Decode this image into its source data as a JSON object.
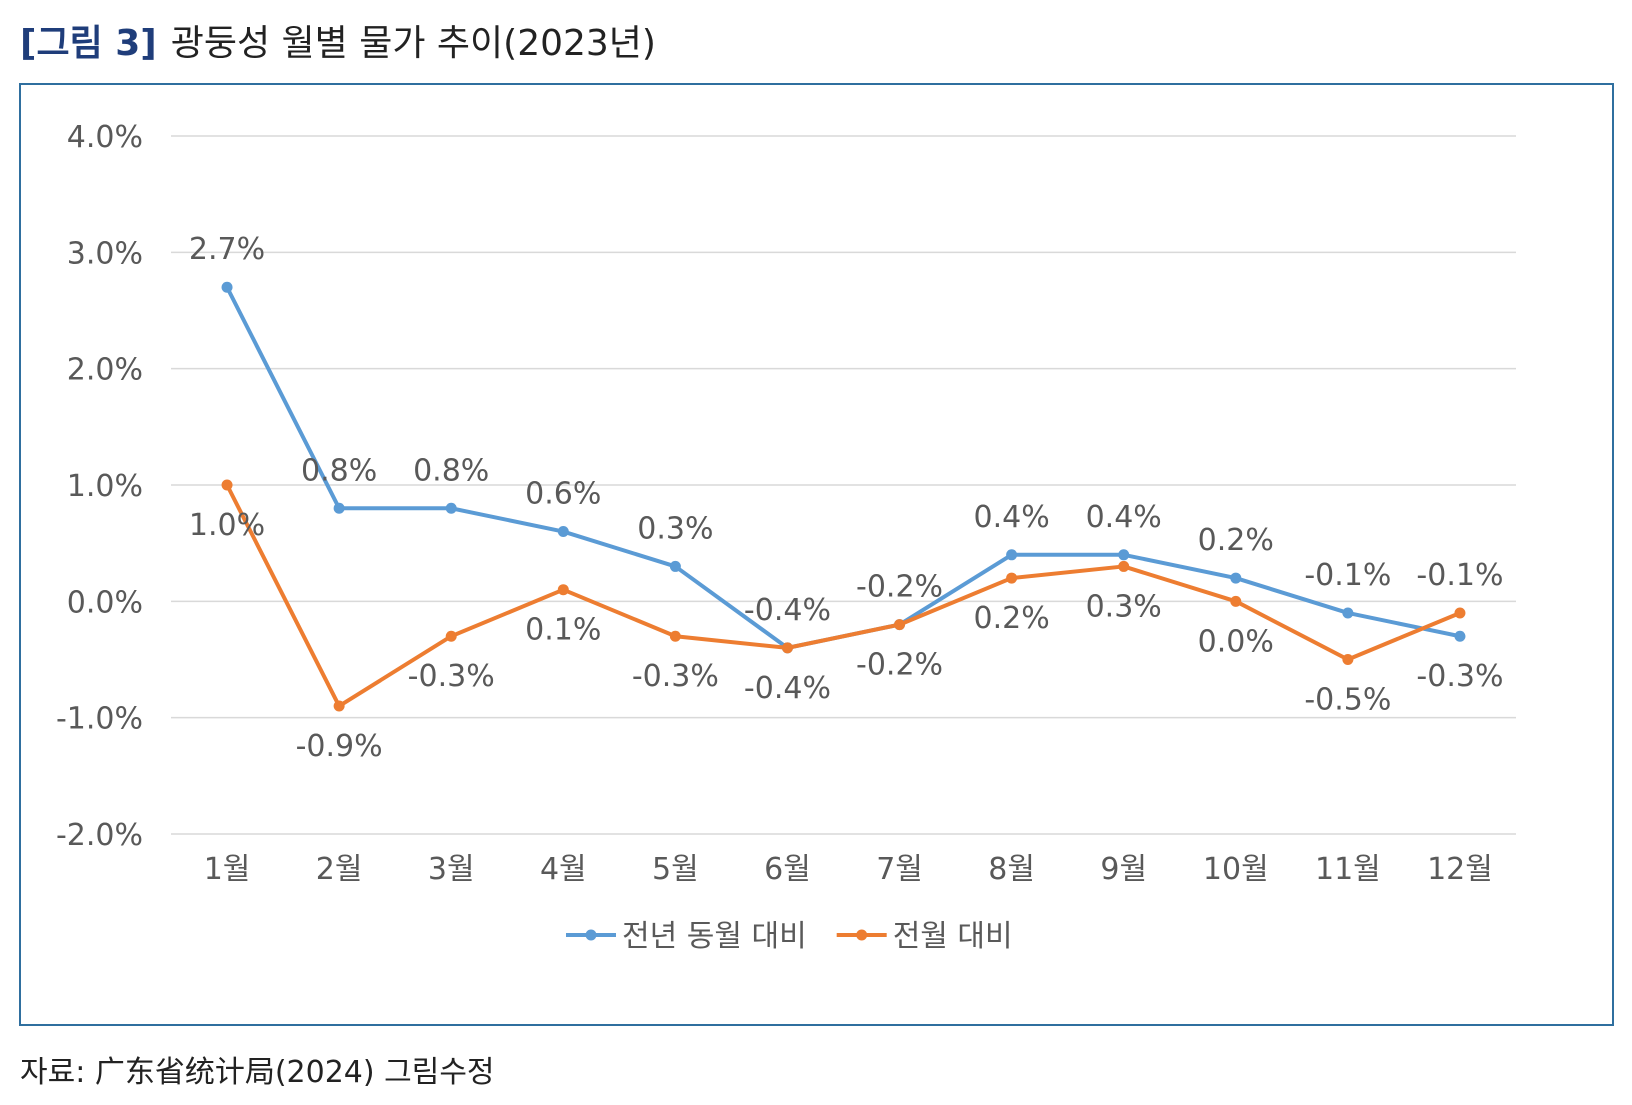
{
  "figure": {
    "number": "[그림 3]",
    "title": "광둥성 월별 물가 추이(2023년)",
    "source": "자료: 广东省统计局(2024) 그림수정"
  },
  "chart_data": {
    "type": "line",
    "categories": [
      "1월",
      "2월",
      "3월",
      "4월",
      "5월",
      "6월",
      "7월",
      "8월",
      "9월",
      "10월",
      "11월",
      "12월"
    ],
    "series": [
      {
        "name": "전년 동월 대비",
        "color": "#5b9bd5",
        "values": [
          2.7,
          0.8,
          0.8,
          0.6,
          0.3,
          -0.4,
          -0.2,
          0.4,
          0.4,
          0.2,
          -0.1,
          -0.3
        ],
        "labels": [
          "2.7%",
          "0.8%",
          "0.8%",
          "0.6%",
          "0.3%",
          "-0.4%",
          "-0.2%",
          "0.4%",
          "0.4%",
          "0.2%",
          "-0.1%",
          "-0.3%"
        ]
      },
      {
        "name": "전월 대비",
        "color": "#ed7d31",
        "values": [
          1.0,
          -0.9,
          -0.3,
          0.1,
          -0.3,
          -0.4,
          -0.2,
          0.2,
          0.3,
          0.0,
          -0.5,
          -0.1
        ],
        "labels": [
          "1.0%",
          "-0.9%",
          "-0.3%",
          "0.1%",
          "-0.3%",
          "-0.4%",
          "-0.2%",
          "0.2%",
          "0.3%",
          "0.0%",
          "-0.5%",
          "-0.1%"
        ]
      }
    ],
    "ylim": [
      -2.0,
      4.0
    ],
    "yticks": [
      4.0,
      3.0,
      2.0,
      1.0,
      0.0,
      -1.0,
      -2.0
    ],
    "ytick_labels": [
      "4.0%",
      "3.0%",
      "2.0%",
      "1.0%",
      "0.0%",
      "-1.0%",
      "-2.0%"
    ],
    "grid": true,
    "legend_position": "bottom",
    "gridline_color": "#d9d9d9",
    "text_color": "#595959"
  }
}
